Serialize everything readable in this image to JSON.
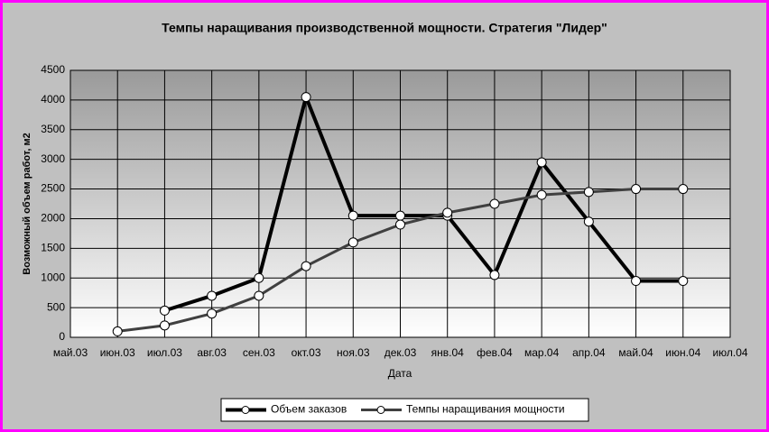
{
  "chart_data": {
    "type": "line",
    "title": "Темпы наращивания производственной мощности. Стратегия \"Лидер\"",
    "x_label": "Дата",
    "y_label": "Возможный объем работ, м2",
    "categories": [
      "май.03",
      "июн.03",
      "июл.03",
      "авг.03",
      "сен.03",
      "окт.03",
      "ноя.03",
      "дек.03",
      "янв.04",
      "фев.04",
      "мар.04",
      "апр.04",
      "май.04",
      "июн.04",
      "июл.04"
    ],
    "series": [
      {
        "name": "Объем заказов",
        "color": "#000000",
        "values": [
          null,
          null,
          450,
          700,
          1000,
          4050,
          2050,
          2050,
          2050,
          1050,
          2950,
          1950,
          950,
          950,
          null
        ]
      },
      {
        "name": "Темпы наращивания мощности",
        "color": "#404040",
        "values": [
          null,
          100,
          200,
          400,
          700,
          1200,
          1600,
          1900,
          2100,
          2250,
          2400,
          2450,
          2500,
          2500,
          null
        ]
      }
    ],
    "ylim": [
      0,
      4500
    ],
    "yticks": [
      0,
      500,
      1000,
      1500,
      2000,
      2500,
      3000,
      3500,
      4000,
      4500
    ],
    "grid": true,
    "legend": "bottom"
  }
}
